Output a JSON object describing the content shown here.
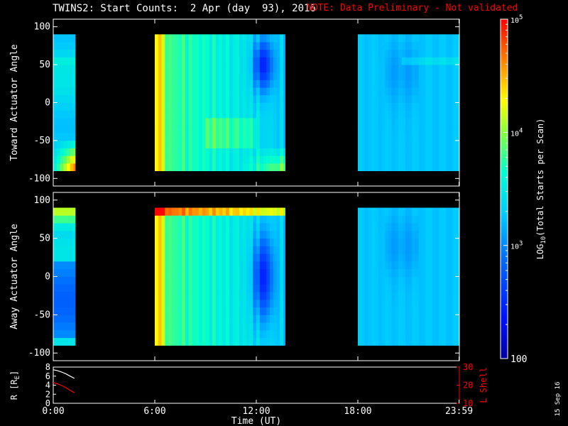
{
  "header": {
    "title": "TWINS2: Start Counts:  2 Apr (day  93), 2016",
    "note": "NOTE: Data Preliminary - Not validated",
    "note_color": "#ff0000"
  },
  "footer": {
    "date_stamp": "15 Sep 16"
  },
  "chart_data": [
    {
      "type": "heatmap",
      "name": "toward",
      "ylabel": "Toward Actuator Angle",
      "ylim": [
        -110,
        110
      ],
      "yticks": [
        "100",
        "50",
        "0",
        "-50",
        "-100"
      ],
      "ytick_values": [
        100,
        50,
        0,
        -50,
        -100
      ],
      "xlim": [
        0,
        24
      ],
      "data_angle_range": [
        -90,
        90
      ],
      "data_intervals_hours": [
        [
          0,
          1.3
        ],
        [
          6.0,
          13.7
        ],
        [
          18.0,
          24.0
        ]
      ],
      "colormap": "rainbow",
      "scale": "log",
      "zlim": [
        100,
        100000
      ]
    },
    {
      "type": "heatmap",
      "name": "away",
      "ylabel": "Away Actuator Angle",
      "ylim": [
        -110,
        110
      ],
      "yticks": [
        "100",
        "50",
        "0",
        "-50",
        "-100"
      ],
      "ytick_values": [
        100,
        50,
        0,
        -50,
        -100
      ],
      "xlim": [
        0,
        24
      ],
      "data_angle_range": [
        -90,
        90
      ],
      "data_intervals_hours": [
        [
          0,
          1.3
        ],
        [
          6.0,
          13.7
        ],
        [
          18.0,
          24.0
        ]
      ],
      "colormap": "rainbow",
      "scale": "log",
      "zlim": [
        100,
        100000
      ]
    },
    {
      "type": "line",
      "name": "orbit",
      "ylabel_left": "R [RE]",
      "ylabel_left_main": "R [R",
      "ylabel_left_sub": "E",
      "ylabel_left_close": "]",
      "ylabel_right": "L Shell",
      "left_ylim": [
        0,
        8
      ],
      "left_yticks": [
        "8",
        "6",
        "4",
        "2",
        "0"
      ],
      "left_ytick_values": [
        8,
        6,
        4,
        2,
        0
      ],
      "right_ylim": [
        10,
        30
      ],
      "right_yticks": [
        "30",
        "20",
        "10"
      ],
      "right_ytick_values": [
        30,
        20,
        10
      ],
      "right_axis_color": "#ff0000",
      "xlim": [
        0,
        24
      ],
      "xticks": [
        "0:00",
        "6:00",
        "12:00",
        "18:00",
        "23:59"
      ],
      "xtick_values": [
        0,
        6,
        12,
        18,
        23.98
      ],
      "xlabel": "Time (UT)",
      "series": [
        {
          "axis": "left",
          "color": "#ffffff",
          "x": [
            0,
            0.25,
            0.5,
            0.75,
            1.0,
            1.25
          ],
          "y": [
            7.4,
            7.2,
            6.9,
            6.5,
            6.0,
            5.5
          ]
        },
        {
          "axis": "right",
          "color": "#ff0000",
          "x": [
            0,
            0.25,
            0.5,
            0.75,
            1.0,
            1.25
          ],
          "y": [
            21.5,
            20.8,
            19.8,
            18.6,
            17.2,
            15.8
          ]
        }
      ]
    }
  ],
  "colorbar": {
    "label_main": "LOG",
    "label_sub": "10",
    "label_rest": "(Total Starts per Scan)",
    "ticks": [
      {
        "value": 100000,
        "base": "10",
        "exp": "5"
      },
      {
        "value": 10000,
        "base": "10",
        "exp": "4"
      },
      {
        "value": 1000,
        "base": "10",
        "exp": "3"
      },
      {
        "value": 100,
        "text": "100"
      }
    ]
  }
}
